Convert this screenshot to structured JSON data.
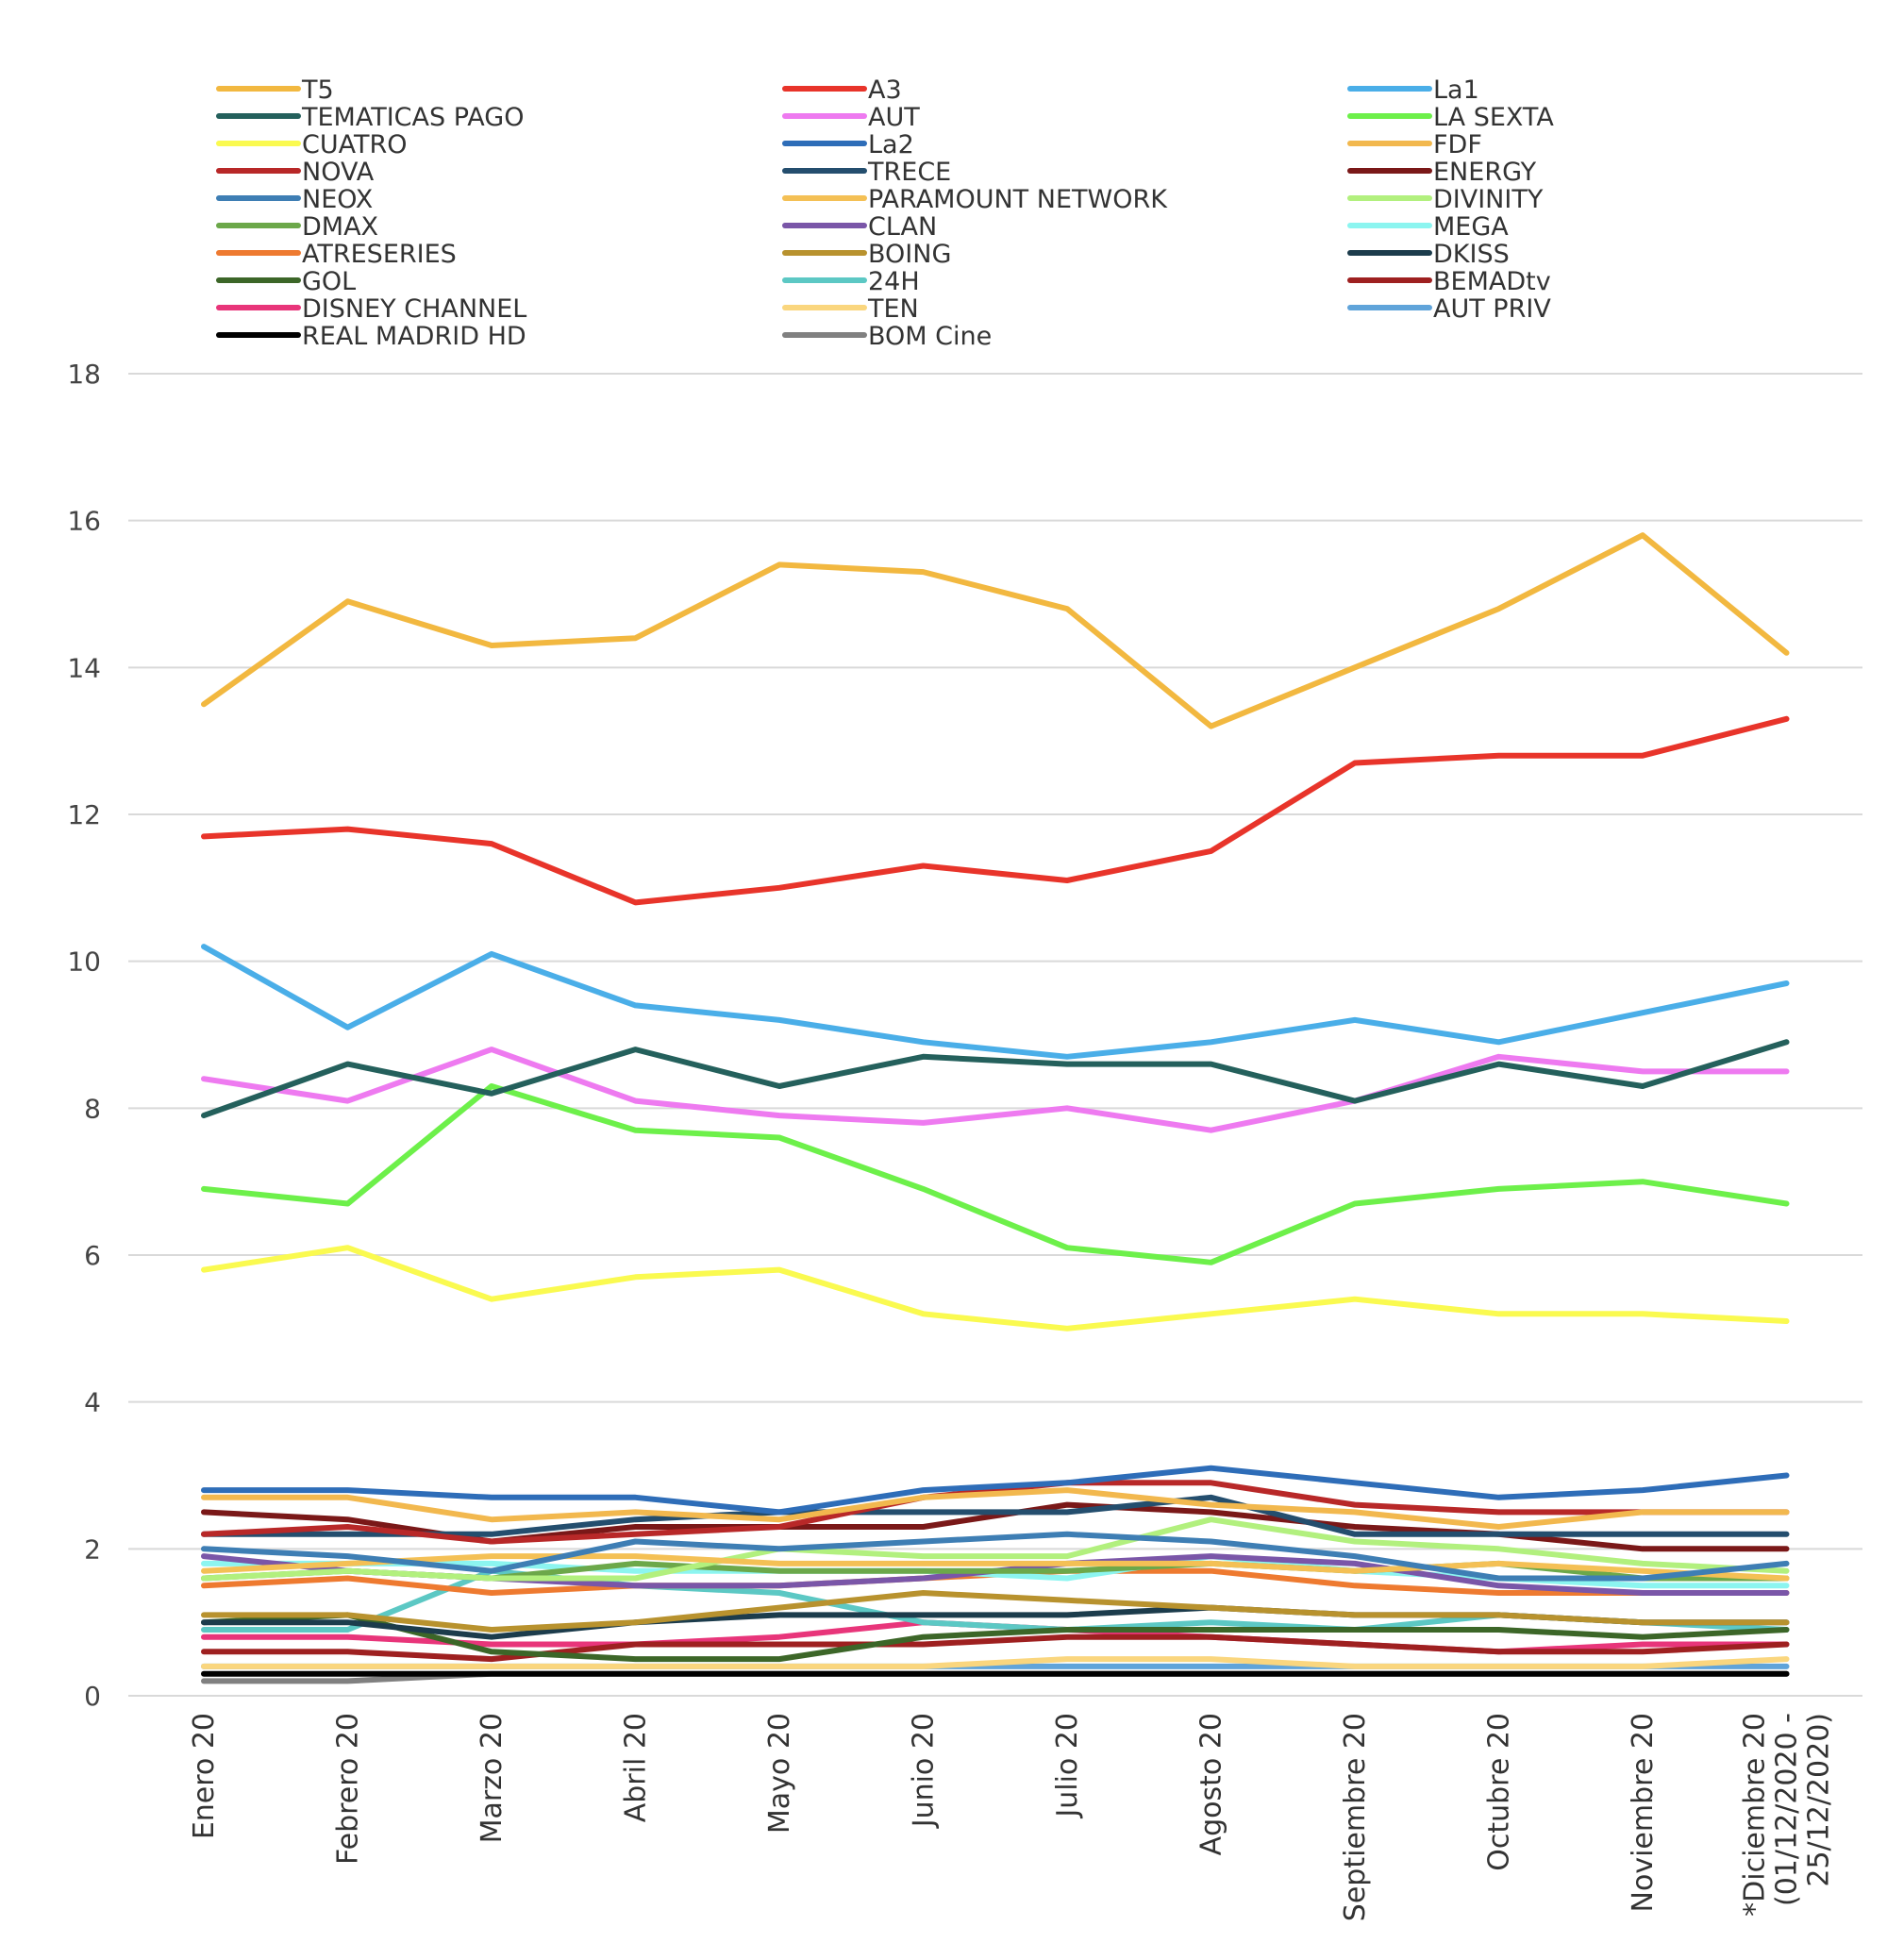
{
  "chart_data": {
    "type": "line",
    "title": "",
    "xlabel": "",
    "ylabel": "",
    "ylim": [
      0,
      18
    ],
    "yticks": [
      0,
      2,
      4,
      6,
      8,
      10,
      12,
      14,
      16,
      18
    ],
    "grid": "horizontal",
    "legend_position": "top",
    "categories": [
      [
        "Enero 20"
      ],
      [
        "Febrero 20"
      ],
      [
        "Marzo 20"
      ],
      [
        "Abril 20"
      ],
      [
        "Mayo 20"
      ],
      [
        "Junio 20"
      ],
      [
        "Julio 20"
      ],
      [
        "Agosto 20"
      ],
      [
        "Septiembre 20"
      ],
      [
        "Octubre 20"
      ],
      [
        "Noviembre 20"
      ],
      [
        "*Diciembre 20",
        "(01/12/2020 -",
        "25/12/2020)"
      ]
    ],
    "series": [
      {
        "name": "T5",
        "color": "#F2B840",
        "values": [
          13.5,
          14.9,
          14.3,
          14.4,
          15.4,
          15.3,
          14.8,
          13.2,
          14.0,
          14.8,
          15.8,
          14.2
        ]
      },
      {
        "name": "A3",
        "color": "#E8342A",
        "values": [
          11.7,
          11.8,
          11.6,
          10.8,
          11.0,
          11.3,
          11.1,
          11.5,
          12.7,
          12.8,
          12.8,
          13.3
        ]
      },
      {
        "name": "La1",
        "color": "#4AAEE8",
        "values": [
          10.2,
          9.1,
          10.1,
          9.4,
          9.2,
          8.9,
          8.7,
          8.9,
          9.2,
          8.9,
          9.3,
          9.7
        ]
      },
      {
        "name": "TEMATICAS PAGO",
        "color": "#24605C",
        "values": [
          7.9,
          8.6,
          8.2,
          8.8,
          8.3,
          8.7,
          8.6,
          8.6,
          8.1,
          8.6,
          8.3,
          8.9
        ]
      },
      {
        "name": "AUT",
        "color": "#EE7AF0",
        "values": [
          8.4,
          8.1,
          8.8,
          8.1,
          7.9,
          7.8,
          8.0,
          7.7,
          8.1,
          8.7,
          8.5,
          8.5
        ]
      },
      {
        "name": "LA SEXTA",
        "color": "#6DF04A",
        "values": [
          6.9,
          6.7,
          8.3,
          7.7,
          7.6,
          6.9,
          6.1,
          5.9,
          6.7,
          6.9,
          7.0,
          6.7
        ]
      },
      {
        "name": "CUATRO",
        "color": "#FAFA50",
        "values": [
          5.8,
          6.1,
          5.4,
          5.7,
          5.8,
          5.2,
          5.0,
          5.2,
          5.4,
          5.2,
          5.2,
          5.1
        ]
      },
      {
        "name": "La2",
        "color": "#2E6DB8",
        "values": [
          2.8,
          2.8,
          2.7,
          2.7,
          2.5,
          2.8,
          2.9,
          3.1,
          2.9,
          2.7,
          2.8,
          3.0
        ]
      },
      {
        "name": "FDF",
        "color": "#F2B84E",
        "values": [
          2.7,
          2.7,
          2.4,
          2.5,
          2.4,
          2.7,
          2.8,
          2.6,
          2.5,
          2.3,
          2.5,
          2.5
        ]
      },
      {
        "name": "NOVA",
        "color": "#B82828",
        "values": [
          2.2,
          2.3,
          2.1,
          2.2,
          2.3,
          2.7,
          2.9,
          2.9,
          2.6,
          2.5,
          2.5,
          2.5
        ]
      },
      {
        "name": "TRECE",
        "color": "#244E6E",
        "values": [
          2.2,
          2.2,
          2.2,
          2.4,
          2.5,
          2.5,
          2.5,
          2.7,
          2.2,
          2.2,
          2.2,
          2.2
        ]
      },
      {
        "name": "ENERGY",
        "color": "#7A1818",
        "values": [
          2.5,
          2.4,
          2.1,
          2.3,
          2.3,
          2.3,
          2.6,
          2.5,
          2.3,
          2.2,
          2.0,
          2.0
        ]
      },
      {
        "name": "NEOX",
        "color": "#3E7EB4",
        "values": [
          2.0,
          1.9,
          1.7,
          2.1,
          2.0,
          2.1,
          2.2,
          2.1,
          1.9,
          1.6,
          1.6,
          1.8
        ]
      },
      {
        "name": "PARAMOUNT NETWORK",
        "color": "#F4C055",
        "values": [
          1.7,
          1.8,
          1.9,
          1.9,
          1.8,
          1.8,
          1.8,
          1.8,
          1.7,
          1.8,
          1.7,
          1.6
        ]
      },
      {
        "name": "DIVINITY",
        "color": "#B2F07E",
        "values": [
          1.6,
          1.7,
          1.6,
          1.6,
          2.0,
          1.9,
          1.9,
          2.4,
          2.1,
          2.0,
          1.8,
          1.7
        ]
      },
      {
        "name": "DMAX",
        "color": "#6CA84A",
        "values": [
          1.6,
          1.7,
          1.6,
          1.8,
          1.7,
          1.7,
          1.7,
          1.8,
          1.7,
          1.8,
          1.6,
          1.6
        ]
      },
      {
        "name": "CLAN",
        "color": "#7A56A8",
        "values": [
          1.9,
          1.7,
          1.6,
          1.5,
          1.5,
          1.6,
          1.8,
          1.9,
          1.8,
          1.5,
          1.4,
          1.4
        ]
      },
      {
        "name": "MEGA",
        "color": "#8CF5F0",
        "values": [
          1.8,
          1.8,
          1.8,
          1.7,
          1.7,
          1.7,
          1.6,
          1.9,
          1.7,
          1.6,
          1.5,
          1.5
        ]
      },
      {
        "name": "ATRESERIES",
        "color": "#EE7A30",
        "values": [
          1.5,
          1.6,
          1.4,
          1.5,
          1.5,
          1.6,
          1.7,
          1.7,
          1.5,
          1.4,
          1.4,
          1.4
        ]
      },
      {
        "name": "BOING",
        "color": "#B8922E",
        "values": [
          1.1,
          1.1,
          0.9,
          1.0,
          1.2,
          1.4,
          1.3,
          1.2,
          1.1,
          1.1,
          1.0,
          1.0
        ]
      },
      {
        "name": "DKISS",
        "color": "#1C3C4C",
        "values": [
          1.0,
          1.0,
          0.8,
          1.0,
          1.1,
          1.1,
          1.1,
          1.2,
          1.1,
          1.1,
          1.0,
          1.0
        ]
      },
      {
        "name": "GOL",
        "color": "#3C6628",
        "values": [
          1.0,
          1.1,
          0.6,
          0.5,
          0.5,
          0.8,
          0.9,
          0.9,
          0.9,
          0.9,
          0.8,
          0.9
        ]
      },
      {
        "name": "24H",
        "color": "#5CC8C4",
        "values": [
          0.9,
          0.9,
          1.7,
          1.5,
          1.4,
          1.0,
          0.9,
          1.0,
          0.9,
          1.1,
          1.0,
          0.9
        ]
      },
      {
        "name": "BEMADtv",
        "color": "#9E2020",
        "values": [
          0.6,
          0.6,
          0.5,
          0.7,
          0.7,
          0.7,
          0.8,
          0.8,
          0.7,
          0.6,
          0.6,
          0.7
        ]
      },
      {
        "name": "DISNEY CHANNEL",
        "color": "#E8357A",
        "values": [
          0.8,
          0.8,
          0.7,
          0.7,
          0.8,
          1.0,
          0.9,
          0.8,
          0.7,
          0.6,
          0.7,
          0.7
        ]
      },
      {
        "name": "TEN",
        "color": "#FAD67E",
        "values": [
          0.4,
          0.4,
          0.4,
          0.4,
          0.4,
          0.4,
          0.5,
          0.5,
          0.4,
          0.4,
          0.4,
          0.5
        ]
      },
      {
        "name": "AUT PRIV",
        "color": "#60A4DA",
        "values": [
          0.4,
          0.4,
          0.4,
          0.4,
          0.4,
          0.4,
          0.4,
          0.4,
          0.4,
          0.4,
          0.4,
          0.4
        ]
      },
      {
        "name": "REAL MADRID HD",
        "color": "#000000",
        "values": [
          0.3,
          0.3,
          0.3,
          0.3,
          0.3,
          0.3,
          0.3,
          0.3,
          0.3,
          0.3,
          0.3,
          0.3
        ]
      },
      {
        "name": "BOM Cine",
        "color": "#808080",
        "values": [
          0.2,
          0.2,
          0.3,
          0.3,
          0.3,
          0.3,
          0.3,
          0.3,
          0.3,
          0.3,
          0.3,
          0.3
        ]
      }
    ]
  }
}
